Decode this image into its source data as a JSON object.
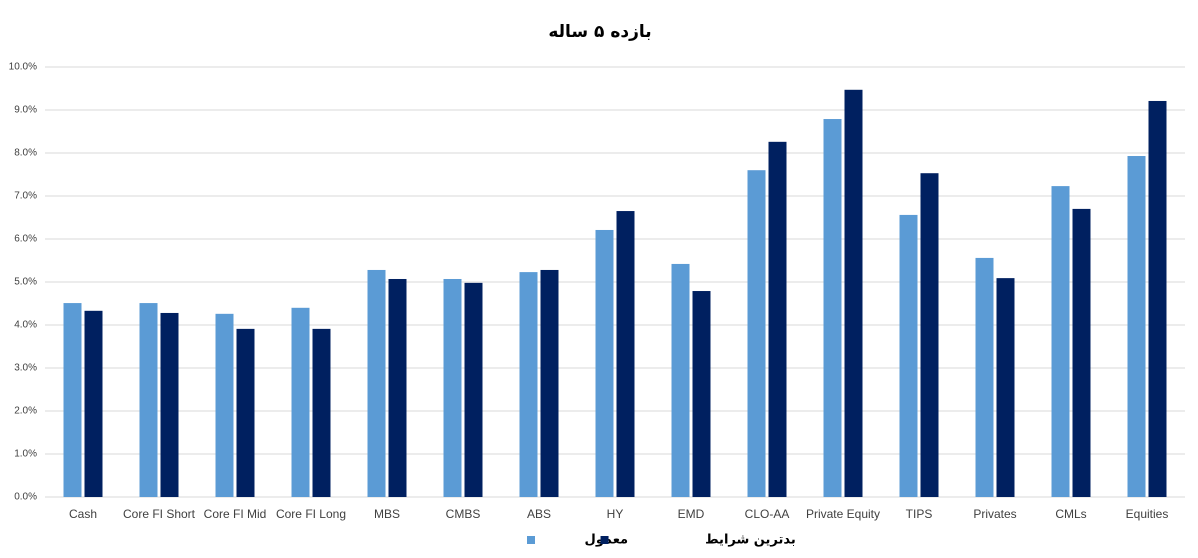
{
  "chart_data": {
    "type": "bar",
    "title": "بازده ۵ ساله",
    "categories": [
      "Cash",
      "Core FI Short",
      "Core FI Mid",
      "Core FI Long",
      "MBS",
      "CMBS",
      "ABS",
      "HY",
      "EMD",
      "CLO-AA",
      "Private Equity",
      "TIPS",
      "Privates",
      "CMLs",
      "Equities"
    ],
    "series": [
      {
        "name": "معمول",
        "color": "#5b9bd5",
        "values": [
          4.51,
          4.51,
          4.26,
          4.4,
          5.28,
          5.07,
          5.23,
          6.21,
          5.42,
          7.6,
          8.79,
          6.56,
          5.56,
          7.23,
          7.93
        ]
      },
      {
        "name": "بدترین شرایط",
        "color": "#002060",
        "values": [
          4.33,
          4.28,
          3.91,
          3.91,
          5.07,
          4.98,
          5.28,
          6.65,
          4.79,
          8.26,
          9.47,
          7.53,
          5.09,
          6.7,
          9.21
        ]
      }
    ],
    "ylim": [
      0,
      10
    ],
    "yticks": [
      {
        "value": 0,
        "label": "0.0%"
      },
      {
        "value": 1,
        "label": "1.0%"
      },
      {
        "value": 2,
        "label": "2.0%"
      },
      {
        "value": 3,
        "label": "3.0%"
      },
      {
        "value": 4,
        "label": "4.0%"
      },
      {
        "value": 5,
        "label": "5.0%"
      },
      {
        "value": 6,
        "label": "6.0%"
      },
      {
        "value": 7,
        "label": "7.0%"
      },
      {
        "value": 8,
        "label": "8.0%"
      },
      {
        "value": 9,
        "label": "9.0%"
      },
      {
        "value": 10,
        "label": "10.0%"
      }
    ],
    "grid": true,
    "legend": "bottom"
  }
}
